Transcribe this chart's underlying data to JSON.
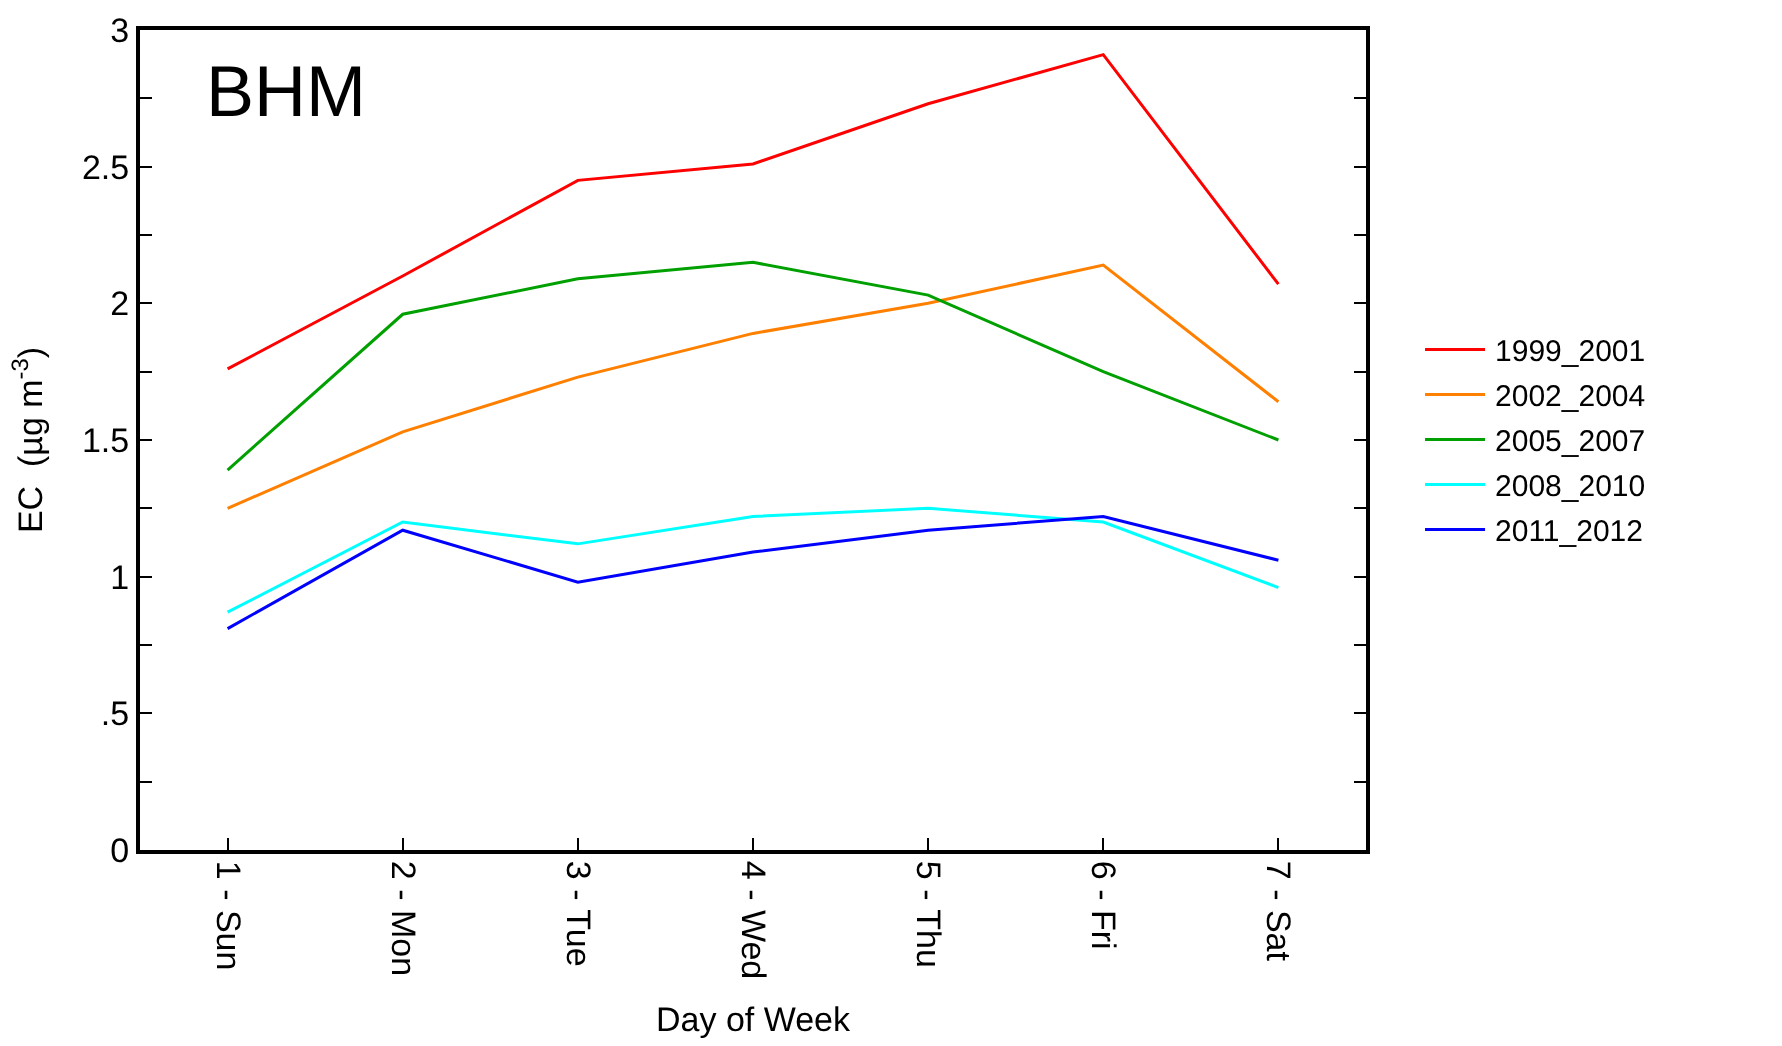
{
  "chart_data": {
    "type": "line",
    "xlabel": "Day of Week",
    "ylabel": "EC  (µg m$^{-3}$)",
    "annotations": [
      "BHM"
    ],
    "categories": [
      "1 - Sun",
      "2 - Mon",
      "3 - Tue",
      "4 - Wed",
      "5 - Thu",
      "6 - Fri",
      "7 - Sat"
    ],
    "series": [
      {
        "name": "1999_2001",
        "color": "#ff0000",
        "values": [
          1.76,
          2.1,
          2.45,
          2.51,
          2.73,
          2.91,
          2.07
        ]
      },
      {
        "name": "2002_2004",
        "color": "#ff8000",
        "values": [
          1.25,
          1.53,
          1.73,
          1.89,
          2.0,
          2.14,
          1.64
        ]
      },
      {
        "name": "2005_2007",
        "color": "#00a000",
        "values": [
          1.39,
          1.96,
          2.09,
          2.15,
          2.03,
          1.75,
          1.5
        ]
      },
      {
        "name": "2008_2010",
        "color": "#00ffff",
        "values": [
          0.87,
          1.2,
          1.12,
          1.22,
          1.25,
          1.2,
          0.96
        ]
      },
      {
        "name": "2011_2012",
        "color": "#0000ff",
        "values": [
          0.81,
          1.17,
          0.98,
          1.09,
          1.17,
          1.22,
          1.06
        ]
      }
    ],
    "ylim": [
      0,
      3
    ],
    "yticks": [
      0,
      {
        "value": 0.5,
        "label": ".5"
      },
      1,
      1.5,
      2,
      2.5,
      3,
      {
        "value": 0.25,
        "label": null
      },
      {
        "value": 0.75,
        "label": null
      },
      {
        "value": 1.25,
        "label": null
      },
      {
        "value": 1.75,
        "label": null
      },
      {
        "value": 2.25,
        "label": null
      },
      {
        "value": 2.75,
        "label": null
      }
    ],
    "legend": "right",
    "marker": "none",
    "line_style": "solid"
  }
}
